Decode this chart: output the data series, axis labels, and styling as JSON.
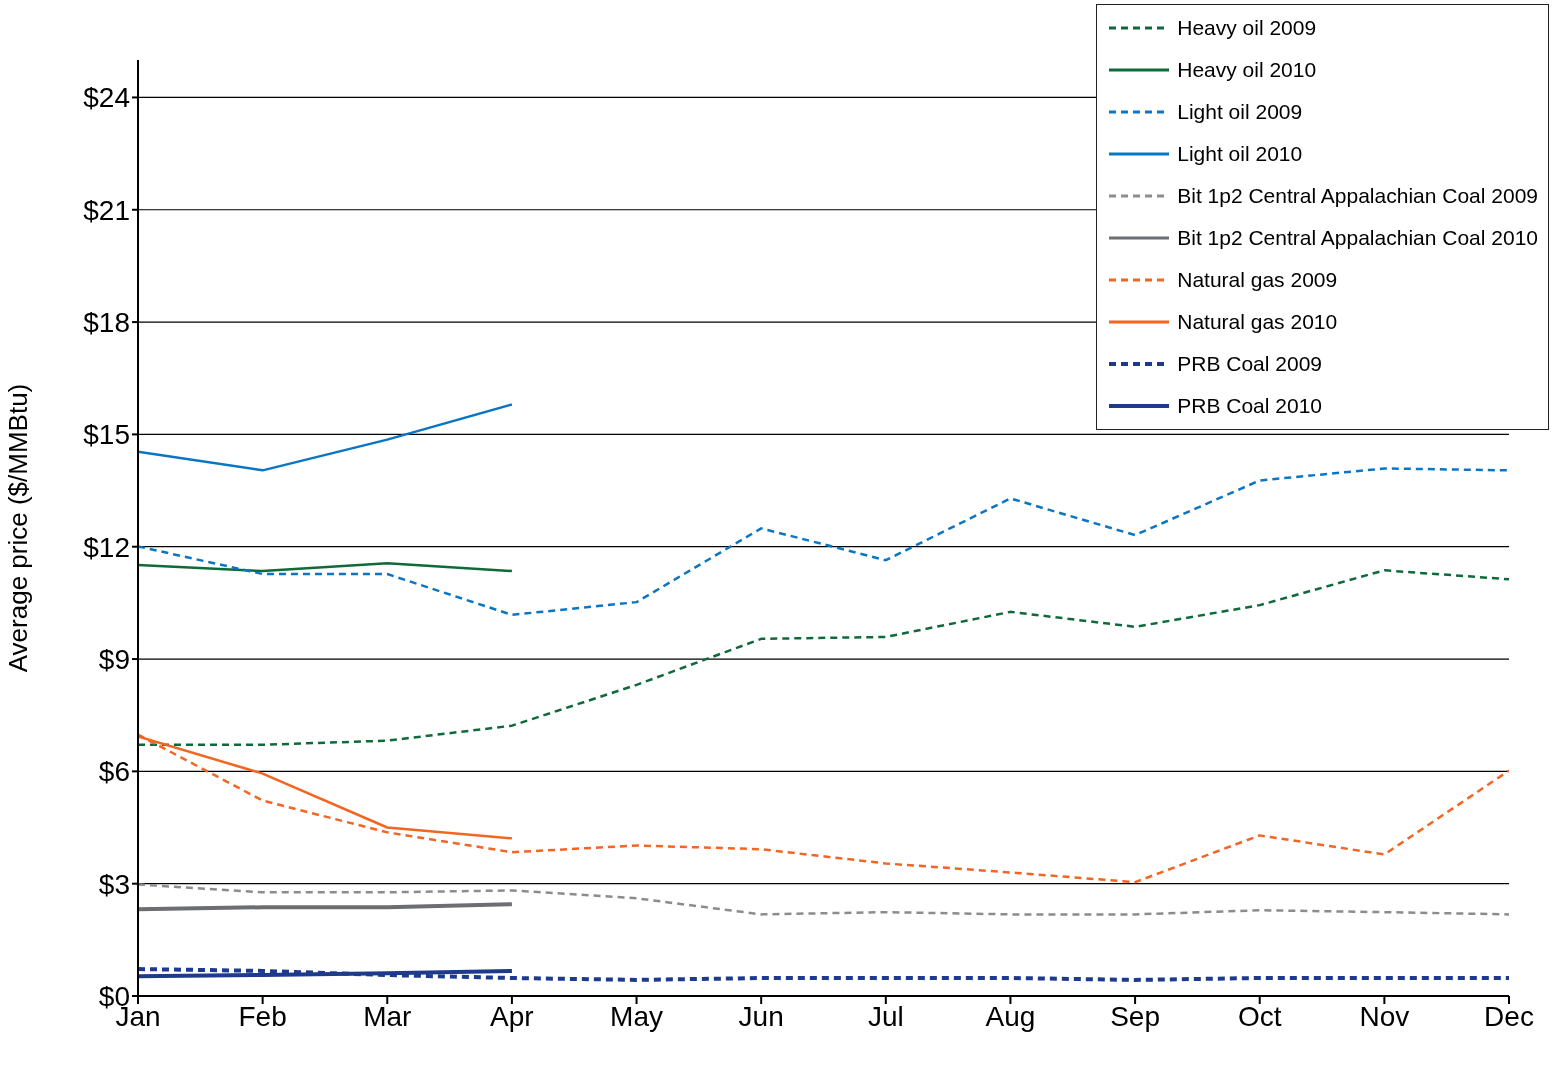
{
  "chart_data": {
    "type": "line",
    "ylabel": "Average price ($/MMBtu)",
    "categories": [
      "Jan",
      "Feb",
      "Mar",
      "Apr",
      "May",
      "Jun",
      "Jul",
      "Aug",
      "Sep",
      "Oct",
      "Nov",
      "Dec"
    ],
    "ylim": [
      0,
      25
    ],
    "yticks": [
      {
        "value": 0,
        "label": "$0"
      },
      {
        "value": 3,
        "label": "$3"
      },
      {
        "value": 6,
        "label": "$6"
      },
      {
        "value": 9,
        "label": "$9"
      },
      {
        "value": 12,
        "label": "$12"
      },
      {
        "value": 15,
        "label": "$15"
      },
      {
        "value": 18,
        "label": "$18"
      },
      {
        "value": 21,
        "label": "$21"
      },
      {
        "value": 24,
        "label": "$24"
      }
    ],
    "grid": "y",
    "legend": "top right",
    "marker": "none",
    "series": [
      {
        "name": "Heavy oil 2009",
        "color": "#0f6a3a",
        "line_style": "dashed",
        "values": [
          6.71,
          6.71,
          6.82,
          7.22,
          8.31,
          9.54,
          9.59,
          10.26,
          9.86,
          10.44,
          11.37,
          11.13
        ]
      },
      {
        "name": "Heavy oil 2010",
        "color": "#0f6a3a",
        "line_style": "solid",
        "values": [
          11.51,
          11.35,
          11.56,
          11.35,
          null,
          null,
          null,
          null,
          null,
          null,
          null,
          null
        ]
      },
      {
        "name": "Light oil 2009",
        "color": "#0a75c2",
        "line_style": "dashed",
        "values": [
          12.01,
          11.27,
          11.27,
          10.18,
          10.52,
          12.49,
          11.64,
          13.29,
          12.31,
          13.77,
          14.09,
          14.04
        ]
      },
      {
        "name": "Light oil 2010",
        "color": "#0a75c2",
        "line_style": "solid",
        "values": [
          14.54,
          14.04,
          14.86,
          15.8,
          null,
          null,
          null,
          null,
          null,
          null,
          null,
          null
        ]
      },
      {
        "name": "Bit 1p2 Central Appalachian Coal 2009",
        "color": "#8c8c8c",
        "line_style": "dashed",
        "values": [
          2.98,
          2.77,
          2.77,
          2.82,
          2.61,
          2.18,
          2.24,
          2.18,
          2.18,
          2.29,
          2.24,
          2.18
        ]
      },
      {
        "name": "Bit 1p2 Central Appalachian Coal 2010",
        "color": "#6d6e71",
        "line_style": "solid",
        "values": [
          2.32,
          2.37,
          2.37,
          2.45,
          null,
          null,
          null,
          null,
          null,
          null,
          null,
          null
        ]
      },
      {
        "name": "Natural gas 2009",
        "color": "#f26522",
        "line_style": "dashed",
        "values": [
          6.98,
          5.22,
          4.37,
          3.84,
          4.02,
          3.92,
          3.54,
          3.3,
          3.04,
          4.29,
          3.78,
          6.02
        ]
      },
      {
        "name": "Natural gas 2010",
        "color": "#f26522",
        "line_style": "solid",
        "values": [
          6.93,
          5.94,
          4.5,
          4.21,
          null,
          null,
          null,
          null,
          null,
          null,
          null,
          null
        ]
      },
      {
        "name": "PRB Coal 2009",
        "color": "#1e3a8a",
        "line_style": "dashed",
        "values": [
          0.72,
          0.67,
          0.56,
          0.48,
          0.43,
          0.48,
          0.48,
          0.48,
          0.43,
          0.48,
          0.48,
          0.48
        ]
      },
      {
        "name": "PRB Coal 2010",
        "color": "#1e3a8a",
        "line_style": "solid",
        "values": [
          0.53,
          0.56,
          0.61,
          0.67,
          null,
          null,
          null,
          null,
          null,
          null,
          null,
          null
        ]
      }
    ]
  }
}
